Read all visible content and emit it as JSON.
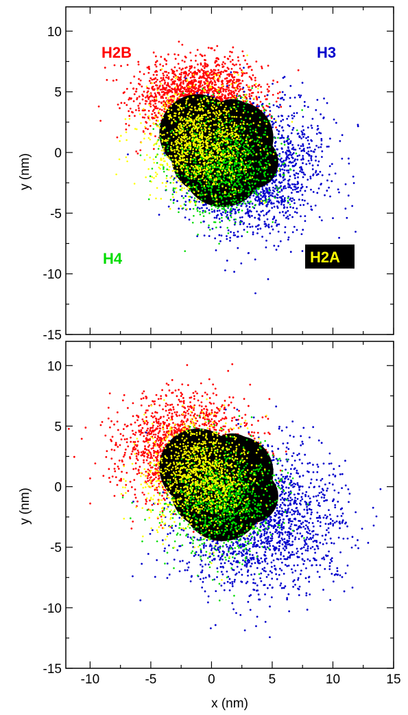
{
  "colors": {
    "H2A": "#ffff00",
    "H2B": "#ff0000",
    "H3": "#0000cc",
    "H4": "#00dd00",
    "core": "#000000"
  },
  "chart_data": [
    {
      "type": "scatter",
      "panel": "top",
      "xlabel": "",
      "ylabel": "y (nm)",
      "xlim": [
        -12,
        15
      ],
      "ylim": [
        -15,
        12
      ],
      "xticks": [],
      "yticks": [
        "-15",
        "-10",
        "-5",
        "0",
        "5",
        "10"
      ],
      "grid": false,
      "series": [
        {
          "name": "H2B",
          "color": "#ff0000",
          "center": [
            -1,
            4.5
          ],
          "spread": [
            2.6,
            1.6
          ],
          "label_pos": "top-left"
        },
        {
          "name": "H3",
          "color": "#0000cc",
          "center": [
            3.5,
            -1.5
          ],
          "spread": [
            2.8,
            2.6
          ],
          "label_pos": "top-right"
        },
        {
          "name": "H4",
          "color": "#00dd00",
          "center": [
            1,
            -1
          ],
          "spread": [
            2.2,
            2.2
          ],
          "label_pos": "bottom-left"
        },
        {
          "name": "H2A",
          "color": "#ffff00",
          "center": [
            -1,
            1
          ],
          "spread": [
            2.2,
            2.2
          ],
          "label_pos": "bottom-right"
        }
      ],
      "core": {
        "center": [
          0.5,
          0
        ],
        "radius": 5.5
      }
    },
    {
      "type": "scatter",
      "panel": "bottom",
      "xlabel": "x (nm)",
      "ylabel": "y (nm)",
      "xlim": [
        -12,
        15
      ],
      "ylim": [
        -15,
        12
      ],
      "xticks": [
        "-10",
        "-5",
        "0",
        "5",
        "10",
        "15"
      ],
      "yticks": [
        "-15",
        "-10",
        "-5",
        "0",
        "5",
        "10"
      ],
      "grid": false,
      "series": [
        {
          "name": "H2B",
          "color": "#ff0000",
          "center": [
            -2,
            3
          ],
          "spread": [
            2.8,
            2.2
          ]
        },
        {
          "name": "H3",
          "color": "#0000cc",
          "center": [
            4,
            -3
          ],
          "spread": [
            3.4,
            3.0
          ]
        },
        {
          "name": "H4",
          "color": "#00dd00",
          "center": [
            1,
            -1
          ],
          "spread": [
            2.2,
            2.2
          ]
        },
        {
          "name": "H2A",
          "color": "#ffff00",
          "center": [
            -1,
            1
          ],
          "spread": [
            2.2,
            2.2
          ]
        }
      ],
      "core": {
        "center": [
          0.5,
          0
        ],
        "radius": 5.5
      }
    }
  ]
}
